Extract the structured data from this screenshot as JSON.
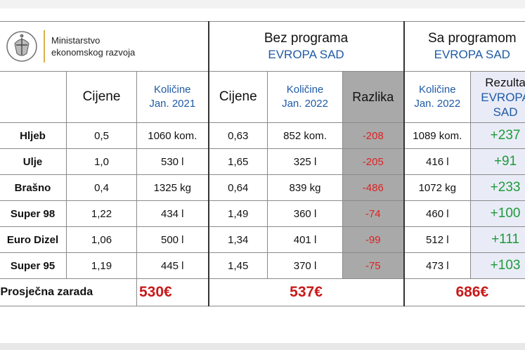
{
  "header": {
    "ministry_line1": "Ministarstvo",
    "ministry_line2": "ekonomskog razvoja",
    "group1_title": "Bez programa",
    "group1_sub": "EVROPA SAD",
    "group2_title": "Sa programom",
    "group2_sub": "EVROPA SAD"
  },
  "columns": {
    "prices": "Cijene",
    "qty2021_line1": "Količine",
    "qty2021_line2": "Jan. 2021",
    "prices2": "Cijene",
    "qty2022_line1": "Količine",
    "qty2022_line2": "Jan. 2022",
    "difference": "Razlika",
    "qty2022b_line1": "Količine",
    "qty2022b_line2": "Jan. 2022",
    "result_line1": "Rezulta",
    "result_line2": "EVROPA",
    "result_line3": "SAD"
  },
  "rows": [
    {
      "name": "Hljeb",
      "price21": "0,5",
      "qty21": "1060 kom.",
      "price22": "0,63",
      "qty22": "852 kom.",
      "diff": "-208",
      "qtyp": "1089 kom.",
      "res": "+237"
    },
    {
      "name": "Ulje",
      "price21": "1,0",
      "qty21": "530 l",
      "price22": "1,65",
      "qty22": "325 l",
      "diff": "-205",
      "qtyp": "416 l",
      "res": "+91"
    },
    {
      "name": "Brašno",
      "price21": "0,4",
      "qty21": "1325 kg",
      "price22": "0,64",
      "qty22": "839 kg",
      "diff": "-486",
      "qtyp": "1072 kg",
      "res": "+233"
    },
    {
      "name": "Super 98",
      "price21": "1,22",
      "qty21": "434 l",
      "price22": "1,49",
      "qty22": "360 l",
      "diff": "-74",
      "qtyp": "460 l",
      "res": "+100"
    },
    {
      "name": "Euro Dizel",
      "price21": "1,06",
      "qty21": "500 l",
      "price22": "1,34",
      "qty22": "401 l",
      "diff": "-99",
      "qtyp": "512 l",
      "res": "+111"
    },
    {
      "name": "Super 95",
      "price21": "1,19",
      "qty21": "445 l",
      "price22": "1,45",
      "qty22": "370 l",
      "diff": "-75",
      "qtyp": "473 l",
      "res": "+103"
    }
  ],
  "average": {
    "label": "Prosječna zarada",
    "val2021": "530€",
    "val2022": "537€",
    "val_program": "686€"
  },
  "colors": {
    "blue": "#1f5aa6",
    "red": "#c81a1a",
    "green": "#1e9a3a",
    "gray": "#a9a9a9",
    "lavender": "#e9ecf7"
  }
}
